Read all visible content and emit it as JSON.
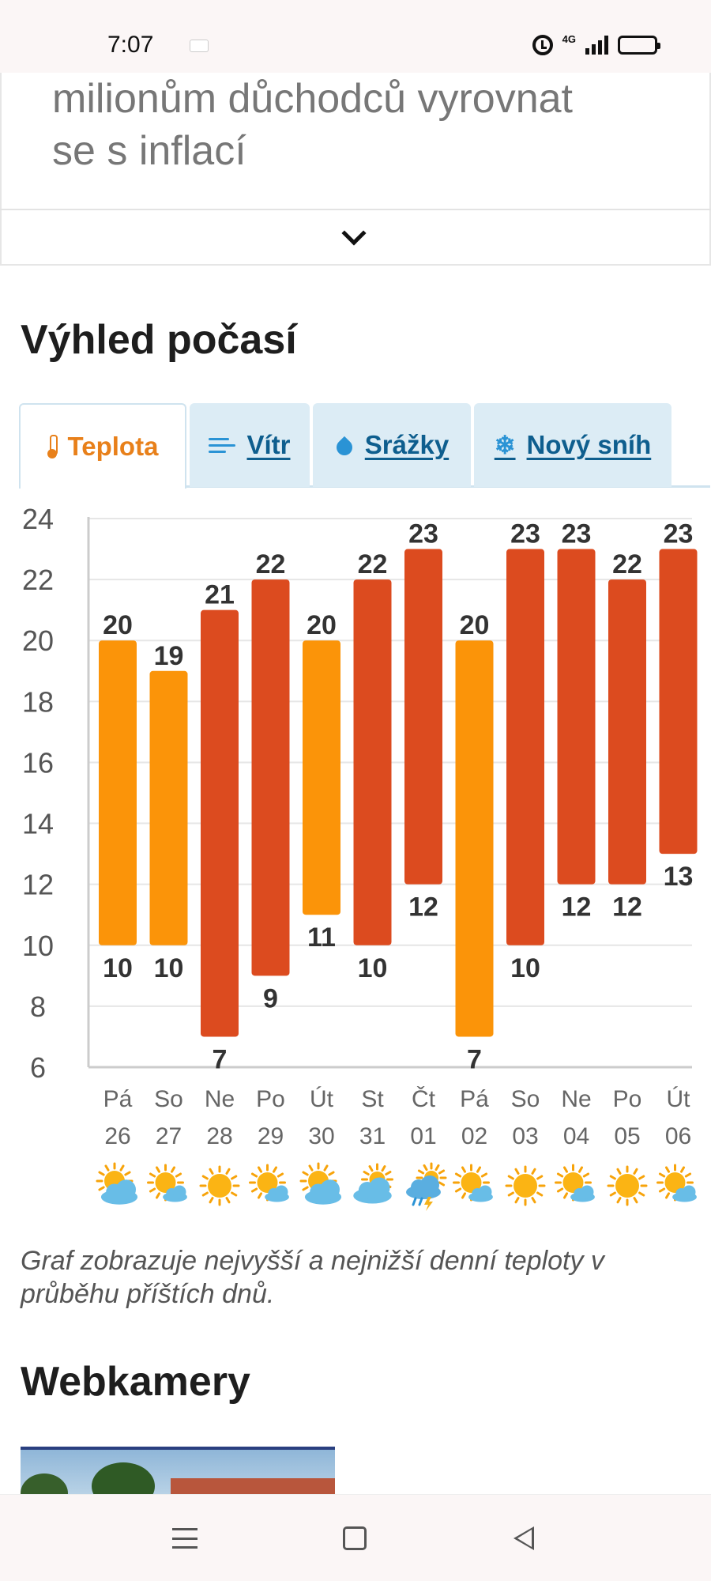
{
  "status_bar": {
    "time": "7:07",
    "network": "4G",
    "icons": [
      "notification-icon",
      "alarm-icon",
      "signal-icon",
      "battery-icon"
    ]
  },
  "article": {
    "text_line1": "milionům důchodců vyrovnat",
    "text_line2": "se s inflací"
  },
  "weather": {
    "title": "Výhled počasí",
    "tabs": [
      {
        "label": "Teplota",
        "icon": "thermometer-icon",
        "active": true
      },
      {
        "label": "Vítr",
        "icon": "wind-icon",
        "active": false
      },
      {
        "label": "Srážky",
        "icon": "drop-icon",
        "active": false
      },
      {
        "label": "Nový sníh",
        "icon": "snowflake-icon",
        "active": false
      }
    ],
    "caption": "Graf zobrazuje nejvyšší a nejnižší denní teploty v průběhu příštích dnů."
  },
  "chart_data": {
    "type": "bar",
    "subtype": "range",
    "ylim": [
      6,
      24
    ],
    "yticks": [
      6,
      8,
      10,
      12,
      14,
      16,
      18,
      20,
      22,
      24
    ],
    "grid": true,
    "colors": {
      "weekend": "#fb9409",
      "weekday": "#dc4b1f",
      "grid": "#e6e6e6",
      "axis": "#cccccc"
    },
    "days": [
      {
        "day": "Pá",
        "date": "26",
        "high": 20,
        "low": 10,
        "weekend": true,
        "icon": "sun-cloud-icon"
      },
      {
        "day": "So",
        "date": "27",
        "high": 19,
        "low": 10,
        "weekend": true,
        "icon": "sun-small-cloud-icon"
      },
      {
        "day": "Ne",
        "date": "28",
        "high": 21,
        "low": 7,
        "weekend": false,
        "icon": "sun-icon"
      },
      {
        "day": "Po",
        "date": "29",
        "high": 22,
        "low": 9,
        "weekend": false,
        "icon": "sun-small-cloud-icon"
      },
      {
        "day": "Út",
        "date": "30",
        "high": 20,
        "low": 11,
        "weekend": true,
        "icon": "sun-cloud-icon"
      },
      {
        "day": "St",
        "date": "31",
        "high": 22,
        "low": 10,
        "weekend": false,
        "icon": "cloud-sun-icon"
      },
      {
        "day": "Čt",
        "date": "01",
        "high": 23,
        "low": 12,
        "weekend": false,
        "icon": "storm-icon"
      },
      {
        "day": "Pá",
        "date": "02",
        "high": 20,
        "low": 7,
        "weekend": true,
        "icon": "sun-small-cloud-icon"
      },
      {
        "day": "So",
        "date": "03",
        "high": 23,
        "low": 10,
        "weekend": false,
        "icon": "sun-icon"
      },
      {
        "day": "Ne",
        "date": "04",
        "high": 23,
        "low": 12,
        "weekend": false,
        "icon": "sun-small-cloud-icon"
      },
      {
        "day": "Po",
        "date": "05",
        "high": 22,
        "low": 12,
        "weekend": false,
        "icon": "sun-icon"
      },
      {
        "day": "Út",
        "date": "06",
        "high": 23,
        "low": 13,
        "weekend": false,
        "icon": "sun-small-cloud-icon"
      }
    ]
  },
  "webcams": {
    "title": "Webkamery"
  },
  "nav_bar": {
    "icons": [
      "menu-icon",
      "home-icon",
      "back-icon"
    ]
  }
}
